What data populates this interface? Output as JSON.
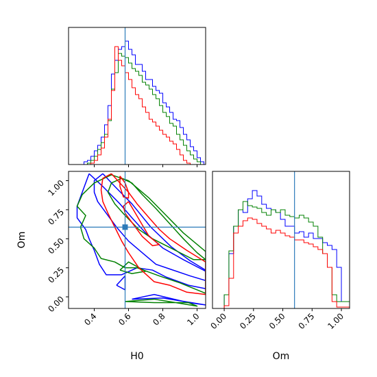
{
  "chart_data": {
    "type": "corner",
    "parameters": [
      "H0",
      "Om"
    ],
    "truth": {
      "H0": 0.58,
      "Om": 0.6
    },
    "series_colors": {
      "blue": "#0000ff",
      "green": "#008000",
      "red": "#ff0000"
    },
    "truth_color": "#2b7bb9",
    "panels": {
      "h0_histogram": {
        "type": "histogram",
        "xlim": [
          0.25,
          1.05
        ],
        "ylim": [
          0,
          1
        ],
        "x_ticks": [
          0.4,
          0.6,
          0.8,
          1.0
        ],
        "tick_labels_shown": false,
        "bin_edges": [
          0.26,
          0.28,
          0.3,
          0.32,
          0.34,
          0.36,
          0.38,
          0.4,
          0.42,
          0.44,
          0.46,
          0.48,
          0.5,
          0.52,
          0.54,
          0.56,
          0.58,
          0.6,
          0.62,
          0.64,
          0.66,
          0.68,
          0.7,
          0.72,
          0.74,
          0.76,
          0.78,
          0.8,
          0.82,
          0.84,
          0.86,
          0.88,
          0.9,
          0.92,
          0.94,
          0.96,
          0.98,
          1.0,
          1.02,
          1.04
        ],
        "series": [
          {
            "color": "blue",
            "values": [
              0.0,
              0.0,
              0.0,
              0.0,
              0.02,
              0.03,
              0.06,
              0.1,
              0.14,
              0.2,
              0.29,
              0.43,
              0.66,
              0.76,
              0.84,
              0.86,
              0.9,
              0.84,
              0.8,
              0.73,
              0.73,
              0.68,
              0.62,
              0.62,
              0.57,
              0.54,
              0.52,
              0.45,
              0.42,
              0.38,
              0.33,
              0.32,
              0.27,
              0.22,
              0.18,
              0.13,
              0.1,
              0.05,
              0.02
            ]
          },
          {
            "color": "green",
            "values": [
              0.0,
              0.0,
              0.0,
              0.0,
              0.0,
              0.01,
              0.03,
              0.06,
              0.11,
              0.16,
              0.22,
              0.32,
              0.55,
              0.67,
              0.81,
              0.79,
              0.78,
              0.74,
              0.7,
              0.68,
              0.65,
              0.6,
              0.58,
              0.55,
              0.51,
              0.48,
              0.43,
              0.38,
              0.35,
              0.3,
              0.28,
              0.22,
              0.18,
              0.14,
              0.1,
              0.07,
              0.04,
              0.02,
              0.0
            ]
          },
          {
            "color": "red",
            "values": [
              0.0,
              0.0,
              0.0,
              0.0,
              0.0,
              0.0,
              0.01,
              0.03,
              0.07,
              0.12,
              0.2,
              0.33,
              0.54,
              0.86,
              0.76,
              0.72,
              0.67,
              0.62,
              0.56,
              0.51,
              0.48,
              0.42,
              0.38,
              0.33,
              0.31,
              0.28,
              0.25,
              0.22,
              0.2,
              0.17,
              0.15,
              0.11,
              0.07,
              0.03,
              0.01,
              0.0,
              0.0,
              0.0,
              0.0
            ]
          }
        ]
      },
      "om_histogram": {
        "type": "histogram",
        "xlim": [
          -0.1,
          1.07
        ],
        "ylim": [
          0,
          1
        ],
        "x_ticks": [
          0.0,
          0.25,
          0.5,
          0.75,
          1.0
        ],
        "x_tick_labels": [
          "0.00",
          "0.25",
          "0.50",
          "0.75",
          "1.00"
        ],
        "xlabel": "Om",
        "bin_edges": [
          0.0,
          0.04,
          0.08,
          0.12,
          0.16,
          0.2,
          0.24,
          0.28,
          0.32,
          0.36,
          0.4,
          0.44,
          0.48,
          0.52,
          0.56,
          0.6,
          0.64,
          0.68,
          0.72,
          0.76,
          0.8,
          0.84,
          0.88,
          0.92,
          0.96,
          1.0,
          1.04,
          1.07
        ],
        "series": [
          {
            "color": "blue",
            "values": [
              0.1,
              0.4,
              0.6,
              0.72,
              0.7,
              0.8,
              0.86,
              0.82,
              0.76,
              0.73,
              0.72,
              0.7,
              0.65,
              0.6,
              0.6,
              0.55,
              0.56,
              0.52,
              0.55,
              0.51,
              0.51,
              0.48,
              0.46,
              0.43,
              0.3,
              0.05,
              0.05
            ]
          },
          {
            "color": "green",
            "values": [
              0.1,
              0.42,
              0.6,
              0.72,
              0.78,
              0.75,
              0.74,
              0.73,
              0.7,
              0.68,
              0.72,
              0.7,
              0.72,
              0.68,
              0.67,
              0.66,
              0.68,
              0.66,
              0.63,
              0.6,
              0.52,
              0.4,
              0.3,
              0.1,
              0.05,
              0.05,
              0.05
            ]
          },
          {
            "color": "red",
            "values": [
              0.02,
              0.22,
              0.55,
              0.6,
              0.64,
              0.66,
              0.65,
              0.62,
              0.6,
              0.58,
              0.55,
              0.57,
              0.55,
              0.53,
              0.52,
              0.5,
              0.5,
              0.48,
              0.47,
              0.45,
              0.43,
              0.4,
              0.3,
              0.05,
              0.01,
              0.01,
              0.01
            ]
          }
        ]
      },
      "joint": {
        "type": "contour",
        "xlim": [
          0.25,
          1.05
        ],
        "ylim": [
          -0.1,
          1.08
        ],
        "x_ticks": [
          0.4,
          0.6,
          0.8,
          1.0
        ],
        "x_tick_labels": [
          "0.4",
          "0.6",
          "0.8",
          "1.0"
        ],
        "y_ticks": [
          0.0,
          0.25,
          0.5,
          0.75,
          1.0
        ],
        "y_tick_labels": [
          "0.00",
          "0.25",
          "0.50",
          "0.75",
          "1.00"
        ],
        "xlabel": "H0",
        "ylabel": "Om",
        "series": [
          {
            "color": "blue",
            "contours": [
              [
                [
                  0.45,
                  1.06
                ],
                [
                  0.52,
                  0.95
                ],
                [
                  0.62,
                  0.8
                ],
                [
                  0.73,
                  0.6
                ],
                [
                  0.85,
                  0.43
                ],
                [
                  0.96,
                  0.31
                ],
                [
                  1.05,
                  0.23
                ],
                [
                  1.05,
                  0.14
                ],
                [
                  0.96,
                  0.18
                ],
                [
                  0.84,
                  0.24
                ],
                [
                  0.76,
                  0.28
                ],
                [
                  0.68,
                  0.38
                ],
                [
                  0.6,
                  0.48
                ],
                [
                  0.53,
                  0.6
                ],
                [
                  0.47,
                  0.72
                ],
                [
                  0.42,
                  0.82
                ],
                [
                  0.4,
                  0.9
                ],
                [
                  0.4,
                  1.0
                ],
                [
                  0.45,
                  1.06
                ]
              ],
              [
                [
                  0.37,
                  1.06
                ],
                [
                  0.45,
                  0.95
                ],
                [
                  0.55,
                  0.8
                ],
                [
                  0.62,
                  0.68
                ],
                [
                  0.7,
                  0.55
                ],
                [
                  0.8,
                  0.42
                ],
                [
                  0.92,
                  0.32
                ],
                [
                  1.05,
                  0.22
                ],
                [
                  1.05,
                  0.07
                ],
                [
                  0.95,
                  0.1
                ],
                [
                  0.82,
                  0.17
                ],
                [
                  0.74,
                  0.23
                ],
                [
                  0.65,
                  0.25
                ],
                [
                  0.56,
                  0.19
                ],
                [
                  0.47,
                  0.19
                ],
                [
                  0.43,
                  0.28
                ],
                [
                  0.4,
                  0.4
                ],
                [
                  0.37,
                  0.5
                ],
                [
                  0.35,
                  0.58
                ],
                [
                  0.3,
                  0.68
                ],
                [
                  0.3,
                  0.78
                ],
                [
                  0.33,
                  0.9
                ],
                [
                  0.37,
                  1.06
                ]
              ],
              [
                [
                  0.53,
                  0.1
                ],
                [
                  0.58,
                  0.18
                ],
                [
                  0.58,
                  0.06
                ],
                [
                  0.53,
                  0.1
                ]
              ],
              [
                [
                  0.62,
                  -0.02
                ],
                [
                  0.8,
                  -0.01
                ],
                [
                  1.05,
                  -0.07
                ],
                [
                  0.95,
                  -0.05
                ],
                [
                  0.75,
                  0.02
                ],
                [
                  0.62,
                  -0.02
                ]
              ]
            ]
          },
          {
            "color": "green",
            "contours": [
              [
                [
                  0.62,
                  0.98
                ],
                [
                  0.68,
                  0.88
                ],
                [
                  0.76,
                  0.76
                ],
                [
                  0.84,
                  0.63
                ],
                [
                  0.92,
                  0.5
                ],
                [
                  1.0,
                  0.38
                ],
                [
                  1.05,
                  0.32
                ],
                [
                  0.98,
                  0.32
                ],
                [
                  0.9,
                  0.38
                ],
                [
                  0.82,
                  0.44
                ],
                [
                  0.74,
                  0.5
                ],
                [
                  0.66,
                  0.58
                ],
                [
                  0.58,
                  0.7
                ],
                [
                  0.52,
                  0.8
                ],
                [
                  0.48,
                  0.9
                ],
                [
                  0.5,
                  0.98
                ],
                [
                  0.56,
                  1.02
                ],
                [
                  0.62,
                  0.98
                ]
              ],
              [
                [
                  0.6,
                  1.0
                ],
                [
                  0.72,
                  0.85
                ],
                [
                  0.82,
                  0.7
                ],
                [
                  0.92,
                  0.55
                ],
                [
                  1.05,
                  0.39
                ],
                [
                  1.05,
                  0.03
                ],
                [
                  0.9,
                  0.12
                ],
                [
                  0.78,
                  0.18
                ],
                [
                  0.65,
                  0.25
                ],
                [
                  0.58,
                  0.25
                ],
                [
                  0.52,
                  0.3
                ],
                [
                  0.44,
                  0.33
                ],
                [
                  0.4,
                  0.42
                ],
                [
                  0.34,
                  0.5
                ],
                [
                  0.32,
                  0.6
                ],
                [
                  0.35,
                  0.7
                ],
                [
                  0.3,
                  0.78
                ],
                [
                  0.33,
                  0.88
                ],
                [
                  0.4,
                  0.98
                ],
                [
                  0.5,
                  1.05
                ],
                [
                  0.6,
                  1.0
                ]
              ],
              [
                [
                  0.55,
                  0.23
                ],
                [
                  0.6,
                  0.3
                ],
                [
                  0.7,
                  0.22
                ],
                [
                  0.62,
                  0.2
                ],
                [
                  0.55,
                  0.23
                ]
              ],
              [
                [
                  0.58,
                  -0.04
                ],
                [
                  0.75,
                  -0.02
                ],
                [
                  1.0,
                  -0.08
                ],
                [
                  0.95,
                  -0.05
                ],
                [
                  0.75,
                  -0.05
                ],
                [
                  0.58,
                  -0.04
                ]
              ]
            ]
          },
          {
            "color": "red",
            "contours": [
              [
                [
                  0.55,
                  1.04
                ],
                [
                  0.58,
                  0.98
                ],
                [
                  0.6,
                  0.9
                ],
                [
                  0.6,
                  0.85
                ],
                [
                  0.57,
                  0.86
                ],
                [
                  0.55,
                  0.95
                ],
                [
                  0.55,
                  1.04
                ]
              ],
              [
                [
                  0.6,
                  0.82
                ],
                [
                  0.64,
                  0.72
                ],
                [
                  0.68,
                  0.62
                ],
                [
                  0.72,
                  0.52
                ],
                [
                  0.78,
                  0.45
                ],
                [
                  0.74,
                  0.44
                ],
                [
                  0.68,
                  0.52
                ],
                [
                  0.63,
                  0.62
                ],
                [
                  0.58,
                  0.72
                ],
                [
                  0.57,
                  0.78
                ],
                [
                  0.6,
                  0.82
                ]
              ],
              [
                [
                  0.5,
                  1.06
                ],
                [
                  0.55,
                  0.98
                ],
                [
                  0.6,
                  0.9
                ],
                [
                  0.65,
                  0.8
                ],
                [
                  0.72,
                  0.68
                ],
                [
                  0.78,
                  0.58
                ],
                [
                  0.84,
                  0.5
                ],
                [
                  0.94,
                  0.4
                ],
                [
                  1.05,
                  0.3
                ],
                [
                  1.05,
                  0.02
                ],
                [
                  0.94,
                  0.04
                ],
                [
                  0.84,
                  0.1
                ],
                [
                  0.75,
                  0.13
                ],
                [
                  0.66,
                  0.25
                ],
                [
                  0.6,
                  0.38
                ],
                [
                  0.56,
                  0.48
                ],
                [
                  0.52,
                  0.6
                ],
                [
                  0.48,
                  0.72
                ],
                [
                  0.45,
                  0.82
                ],
                [
                  0.44,
                  0.92
                ],
                [
                  0.45,
                  1.02
                ],
                [
                  0.5,
                  1.06
                ]
              ]
            ]
          }
        ]
      }
    }
  }
}
